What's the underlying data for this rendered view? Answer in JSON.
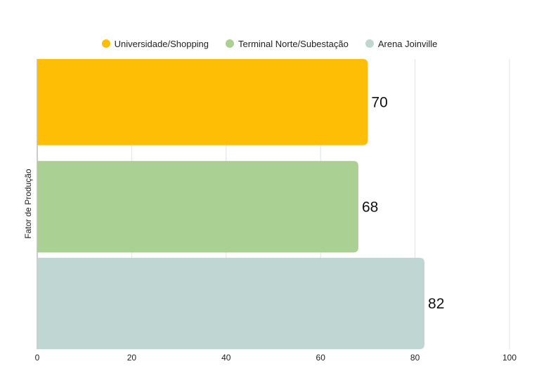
{
  "chart_data": {
    "type": "bar",
    "orientation": "horizontal",
    "ylabel": "Fator de Produção",
    "xlim": [
      0,
      100
    ],
    "x_ticks": [
      "0",
      "20",
      "40",
      "60",
      "80",
      "100"
    ],
    "grid": true,
    "legend_position": "top-center",
    "series": [
      {
        "name": "Universidade/Shopping",
        "value": 70,
        "label": "70",
        "color": "#FFBE06"
      },
      {
        "name": "Terminal Norte/Subestação",
        "value": 68,
        "label": "68",
        "color": "#AAD093"
      },
      {
        "name": "Arena Joinville",
        "value": 82,
        "label": "82",
        "color": "#C0D6D3"
      }
    ]
  }
}
